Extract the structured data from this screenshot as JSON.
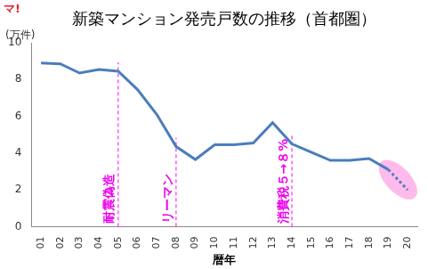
{
  "chart_data": {
    "type": "line",
    "title": "新築マンション発売戸数の推移（首都圏）",
    "logo": "マ!",
    "y_label": "(万件)",
    "x_label": "暦年",
    "categories": [
      "01",
      "02",
      "03",
      "04",
      "05",
      "06",
      "07",
      "08",
      "09",
      "10",
      "11",
      "12",
      "13",
      "14",
      "15",
      "16",
      "17",
      "18",
      "19",
      "20"
    ],
    "series": [
      {
        "color": "#4a7ebb",
        "line_style": "solid",
        "values": [
          8.9,
          8.85,
          8.35,
          8.55,
          8.45,
          7.45,
          6.1,
          4.35,
          3.65,
          4.45,
          4.45,
          4.55,
          5.65,
          4.5,
          4.05,
          3.6,
          3.6,
          3.7,
          3.1,
          null
        ]
      },
      {
        "color": "#4a7ebb",
        "line_style": "dotted",
        "values": [
          null,
          null,
          null,
          null,
          null,
          null,
          null,
          null,
          null,
          null,
          null,
          null,
          null,
          null,
          null,
          null,
          null,
          null,
          3.1,
          2.0
        ]
      }
    ],
    "annotations": [
      {
        "text": "耐震偽造",
        "at": "05"
      },
      {
        "text": "リーマン",
        "at": "08"
      },
      {
        "text": "消費税５→８%",
        "at": "14"
      }
    ],
    "ylim": [
      0,
      10
    ],
    "yticks": [
      0,
      2,
      4,
      6,
      8,
      10
    ],
    "grid": false
  }
}
